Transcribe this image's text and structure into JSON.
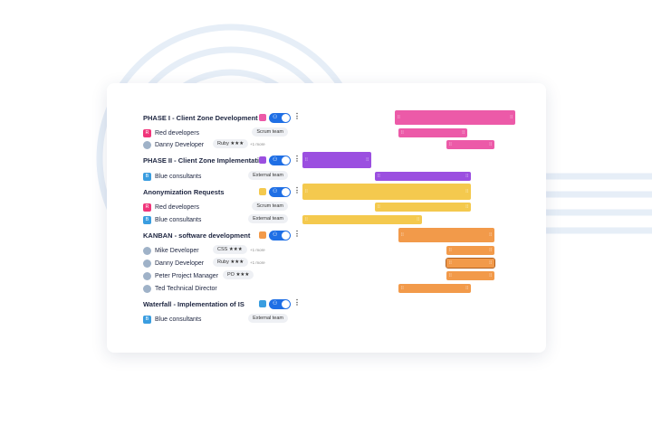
{
  "colors": {
    "pink": "#ec5aa8",
    "purple": "#9b4fe0",
    "yellow": "#f4c94e",
    "orange": "#f29a4a",
    "blue": "#1f6fe5",
    "red_sq": "#f0357a",
    "blue_sq": "#3a9de0"
  },
  "rows": [
    {
      "type": "phase",
      "label": "PHASE I - Client Zone Development ...",
      "color": "#ec5aa8"
    },
    {
      "type": "team",
      "label": "Red developers",
      "badge": "R",
      "chip": "Scrum team"
    },
    {
      "type": "person",
      "label": "Danny Developer",
      "chip": "Ruby ★★★",
      "more": "+1 more"
    },
    {
      "type": "phase",
      "label": "PHASE II - Client Zone Implementati...",
      "color": "#9b4fe0"
    },
    {
      "type": "team",
      "label": "Blue consultants",
      "badge": "B",
      "chip": "External team"
    },
    {
      "type": "phase",
      "label": "Anonymization Requests",
      "color": "#f4c94e"
    },
    {
      "type": "team",
      "label": "Red developers",
      "badge": "R",
      "chip": "Scrum team"
    },
    {
      "type": "team",
      "label": "Blue consultants",
      "badge": "B",
      "chip": "External team"
    },
    {
      "type": "phase",
      "label": "KANBAN - software development",
      "color": "#f29a4a"
    },
    {
      "type": "person",
      "label": "Mike Developer",
      "chip": "CSS ★★★",
      "more": "+1 more"
    },
    {
      "type": "person",
      "label": "Danny Developer",
      "chip": "Ruby ★★★",
      "more": "+1 more"
    },
    {
      "type": "person",
      "label": "Peter Project Manager",
      "chip": "PO ★★★"
    },
    {
      "type": "person",
      "label": "Ted Technical Director"
    },
    {
      "type": "phase",
      "label": "Waterfall - Implementation of IS",
      "color": "#3a9de0"
    },
    {
      "type": "team",
      "label": "Blue consultants",
      "badge": "B",
      "chip": "External team"
    }
  ]
}
